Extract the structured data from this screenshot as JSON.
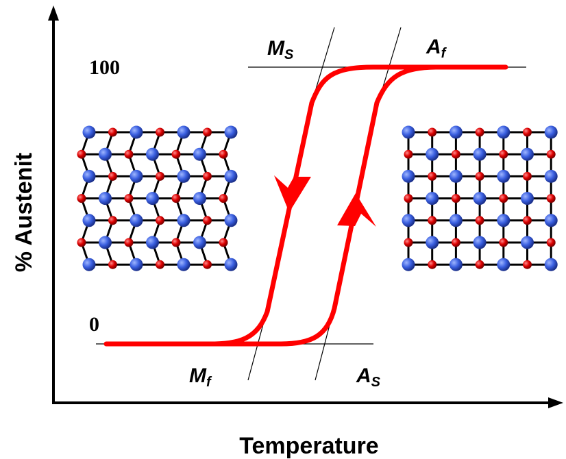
{
  "axes": {
    "x_label": "Temperature",
    "y_label": "% Austenit",
    "tick_top": "100",
    "tick_bottom": "0"
  },
  "markers": {
    "ms": {
      "main": "M",
      "sub": "S"
    },
    "af": {
      "main": "A",
      "sub": "f"
    },
    "mf": {
      "main": "M",
      "sub": "f"
    },
    "as": {
      "main": "A",
      "sub": "S"
    }
  },
  "colors": {
    "curve": "#ff0000",
    "atom_large": "#3a5fe0",
    "atom_small": "#dd0000",
    "bond": "#000000"
  },
  "lattices": {
    "martensite": {
      "rows": 7,
      "cols": 7,
      "pattern": "zigzag"
    },
    "austenite": {
      "rows": 7,
      "cols": 7,
      "pattern": "square"
    }
  }
}
